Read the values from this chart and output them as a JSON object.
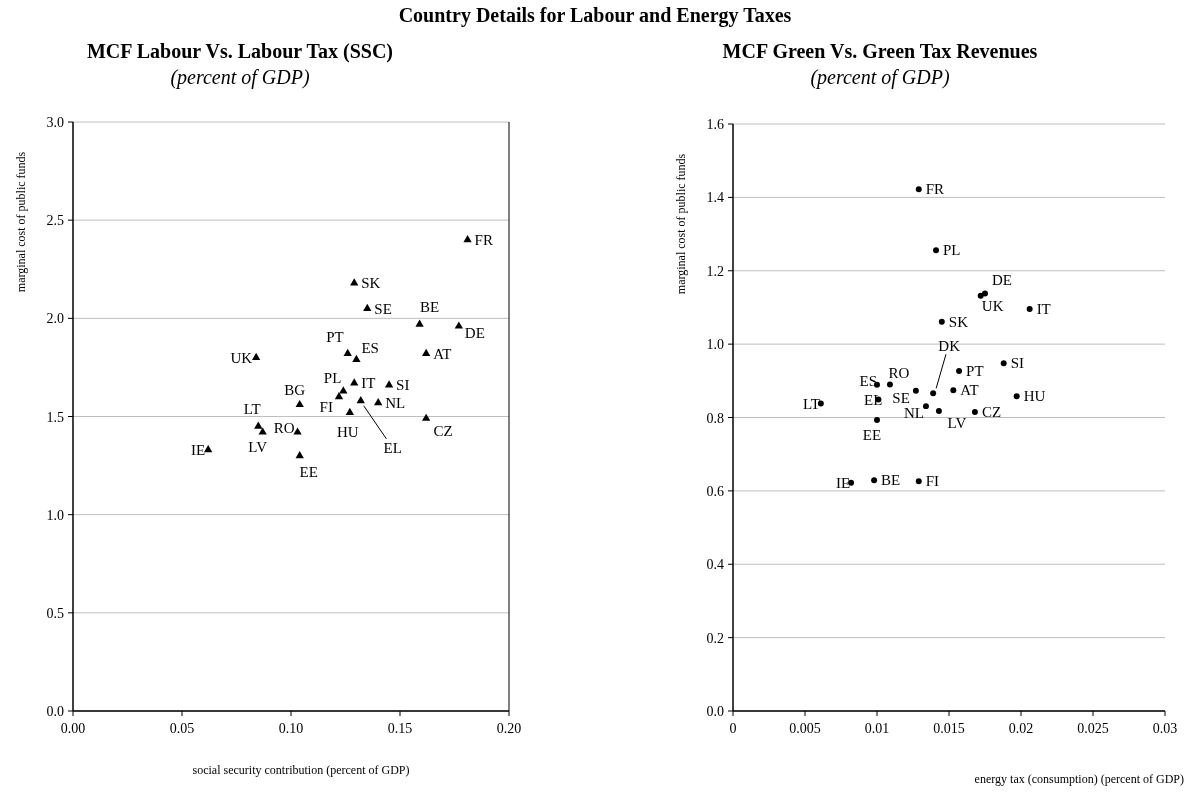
{
  "chart_data": [
    {
      "type": "scatter",
      "title": "MCF Labour Vs. Labour Tax (SSC)",
      "subtitle": "(percent of GDP)",
      "xlabel": "social security contribution (percent of GDP)",
      "ylabel": "marginal cost of public funds",
      "marker": "triangle",
      "grid": "y",
      "xlim": [
        0,
        0.2
      ],
      "xticks": [
        {
          "value": 0,
          "label": "0.00"
        },
        {
          "value": 0.05,
          "label": "0.05"
        },
        {
          "value": 0.1,
          "label": "0.10"
        },
        {
          "value": 0.15,
          "label": "0.15"
        },
        {
          "value": 0.2,
          "label": "0.20"
        }
      ],
      "ylim": [
        0,
        3
      ],
      "yticks": [
        {
          "value": 0,
          "label": "0.0"
        },
        {
          "value": 0.5,
          "label": "0.5"
        },
        {
          "value": 1,
          "label": "1.0"
        },
        {
          "value": 1.5,
          "label": "1.5"
        },
        {
          "value": 2,
          "label": "2.0"
        },
        {
          "value": 2.5,
          "label": "2.5"
        },
        {
          "value": 3,
          "label": "3.0"
        }
      ],
      "series": [
        {
          "color": "#000000",
          "x": [
            0.181,
            0.129,
            0.135,
            0.159,
            0.177,
            0.126,
            0.13,
            0.084,
            0.162,
            0.129,
            0.145,
            0.124,
            0.122,
            0.132,
            0.14,
            0.104,
            0.127,
            0.162,
            0.085,
            0.087,
            0.103,
            0.062,
            0.104
          ],
          "values": [
            2.4,
            2.18,
            2.05,
            1.97,
            1.96,
            1.82,
            1.79,
            1.8,
            1.82,
            1.67,
            1.66,
            1.63,
            1.6,
            1.58,
            1.57,
            1.56,
            1.52,
            1.49,
            1.45,
            1.42,
            1.42,
            1.33,
            1.3
          ]
        }
      ],
      "annotations": [
        "Country Details for Labour and Energy Taxes",
        {
          "text": "FR",
          "x": 0.181,
          "y": 2.4
        },
        {
          "text": "SK",
          "x": 0.129,
          "y": 2.18
        },
        {
          "text": "SE",
          "x": 0.135,
          "y": 2.05
        },
        {
          "text": "BE",
          "x": 0.159,
          "y": 1.97
        },
        {
          "text": "DE",
          "x": 0.177,
          "y": 1.96
        },
        {
          "text": "PT",
          "x": 0.126,
          "y": 1.82
        },
        {
          "text": "ES",
          "x": 0.13,
          "y": 1.79
        },
        {
          "text": "UK",
          "x": 0.084,
          "y": 1.8
        },
        {
          "text": "AT",
          "x": 0.162,
          "y": 1.82
        },
        {
          "text": "IT",
          "x": 0.129,
          "y": 1.67
        },
        {
          "text": "SI",
          "x": 0.145,
          "y": 1.66
        },
        {
          "text": "PL",
          "x": 0.124,
          "y": 1.63
        },
        {
          "text": "FI",
          "x": 0.122,
          "y": 1.6
        },
        {
          "text": "EL",
          "x": 0.132,
          "y": 1.58
        },
        {
          "text": "NL",
          "x": 0.14,
          "y": 1.57
        },
        {
          "text": "BG",
          "x": 0.104,
          "y": 1.56
        },
        {
          "text": "HU",
          "x": 0.127,
          "y": 1.52
        },
        {
          "text": "CZ",
          "x": 0.162,
          "y": 1.49
        },
        {
          "text": "LT",
          "x": 0.085,
          "y": 1.45
        },
        {
          "text": "LV",
          "x": 0.087,
          "y": 1.42
        },
        {
          "text": "RO",
          "x": 0.103,
          "y": 1.42
        },
        {
          "text": "IE",
          "x": 0.062,
          "y": 1.33
        },
        {
          "text": "EE",
          "x": 0.104,
          "y": 1.3
        }
      ]
    },
    {
      "type": "scatter",
      "title": "MCF Green Vs. Green Tax Revenues",
      "subtitle": "(percent of GDP)",
      "xlabel": "energy tax (consumption) (percent of GDP)",
      "ylabel": "marginal cost of public funds",
      "marker": "circle",
      "grid": "y",
      "xlim": [
        0,
        0.03
      ],
      "xticks": [
        0,
        0.005,
        0.01,
        0.015,
        0.02,
        0.025,
        0.03
      ],
      "ylim": [
        0,
        1.6
      ],
      "yticks": [
        {
          "value": 0,
          "label": "0.0"
        },
        {
          "value": 0.2,
          "label": "0.2"
        },
        {
          "value": 0.4,
          "label": "0.4"
        },
        {
          "value": 0.6,
          "label": "0.6"
        },
        {
          "value": 0.8,
          "label": "0.8"
        },
        {
          "value": 1,
          "label": "1.0"
        },
        {
          "value": 1.2,
          "label": "1.2"
        },
        {
          "value": 1.4,
          "label": "1.4"
        },
        {
          "value": 1.6,
          "label": "1.6"
        }
      ],
      "series": [
        {
          "color": "#000000",
          "x": [
            0.0129,
            0.0141,
            0.0175,
            0.0172,
            0.0206,
            0.0145,
            0.0188,
            0.0157,
            0.01,
            0.0109,
            0.0127,
            0.0139,
            0.0153,
            0.0197,
            0.0101,
            0.0061,
            0.0134,
            0.0143,
            0.0168,
            0.01,
            0.0082,
            0.0098,
            0.0129
          ],
          "values": [
            1.422,
            1.256,
            1.138,
            1.132,
            1.096,
            1.061,
            0.948,
            0.927,
            0.889,
            0.89,
            0.873,
            0.866,
            0.874,
            0.858,
            0.849,
            0.838,
            0.831,
            0.818,
            0.815,
            0.793,
            0.622,
            0.629,
            0.626
          ]
        }
      ],
      "annotations": [
        {
          "text": "FR",
          "x": 0.0129,
          "y": 1.422
        },
        {
          "text": "PL",
          "x": 0.0141,
          "y": 1.256
        },
        {
          "text": "DE",
          "x": 0.0175,
          "y": 1.138
        },
        {
          "text": "UK",
          "x": 0.0172,
          "y": 1.132
        },
        {
          "text": "IT",
          "x": 0.0206,
          "y": 1.096
        },
        {
          "text": "SK",
          "x": 0.0145,
          "y": 1.061
        },
        {
          "text": "SI",
          "x": 0.0188,
          "y": 0.948
        },
        {
          "text": "PT",
          "x": 0.0157,
          "y": 0.927
        },
        {
          "text": "ES",
          "x": 0.01,
          "y": 0.889
        },
        {
          "text": "RO",
          "x": 0.0109,
          "y": 0.89
        },
        {
          "text": "SE",
          "x": 0.0127,
          "y": 0.873
        },
        {
          "text": "DK",
          "x": 0.0139,
          "y": 0.866
        },
        {
          "text": "AT",
          "x": 0.0153,
          "y": 0.874
        },
        {
          "text": "HU",
          "x": 0.0197,
          "y": 0.858
        },
        {
          "text": "EL",
          "x": 0.0101,
          "y": 0.849
        },
        {
          "text": "LT",
          "x": 0.0061,
          "y": 0.838
        },
        {
          "text": "NL",
          "x": 0.0134,
          "y": 0.831
        },
        {
          "text": "LV",
          "x": 0.0143,
          "y": 0.818
        },
        {
          "text": "CZ",
          "x": 0.0168,
          "y": 0.815
        },
        {
          "text": "EE",
          "x": 0.01,
          "y": 0.793
        },
        {
          "text": "IE",
          "x": 0.0082,
          "y": 0.622
        },
        {
          "text": "BE",
          "x": 0.0098,
          "y": 0.629
        },
        {
          "text": "FI",
          "x": 0.0129,
          "y": 0.626
        }
      ]
    }
  ]
}
